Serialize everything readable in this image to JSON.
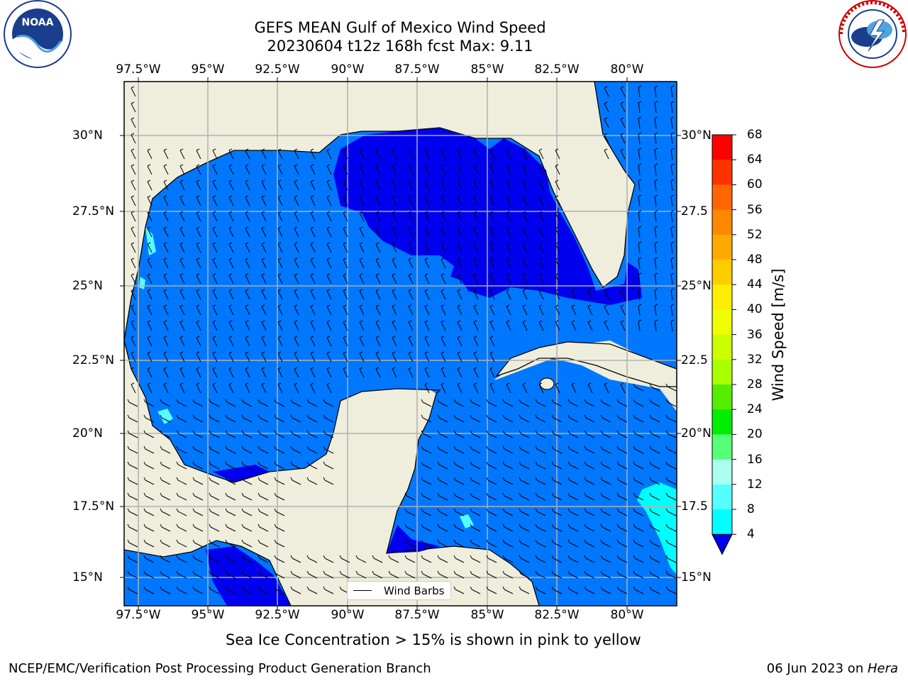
{
  "title_line1": "GEFS MEAN Gulf of Mexico Wind Speed",
  "title_line2": "20230604 t12z 168h fcst   Max: 9.11",
  "lon_ticks": [
    "97.5°W",
    "95°W",
    "92.5°W",
    "90°W",
    "87.5°W",
    "85°W",
    "82.5°W",
    "80°W"
  ],
  "lat_ticks": [
    "30°N",
    "27.5°N",
    "25°N",
    "22.5°N",
    "20°N",
    "17.5°N",
    "15°N"
  ],
  "lat_ticks_right": [
    "30°N",
    "27.5",
    "25°N",
    "22.5",
    "20°N",
    "17.5",
    "15°N"
  ],
  "colorbar": {
    "title": "Wind Speed [m/s]",
    "labels": [
      "68",
      "64",
      "60",
      "56",
      "52",
      "48",
      "44",
      "40",
      "36",
      "32",
      "28",
      "24",
      "20",
      "16",
      "12",
      "8",
      "4"
    ],
    "colors": [
      "#ff0000",
      "#ff3300",
      "#ff6600",
      "#ff8800",
      "#ffaa00",
      "#ffcc00",
      "#ffee00",
      "#eeff00",
      "#ccff00",
      "#aaff00",
      "#55ee00",
      "#00ee00",
      "#55ff77",
      "#aaffee",
      "#55ffff",
      "#00ffff",
      "#0077ff"
    ],
    "under_color": "#0000ee"
  },
  "legend_label": "Wind Barbs",
  "note": "Sea Ice Concentration > 15% is shown in pink to yellow",
  "footer_left": "NCEP/EMC/Verification Post Processing Product Generation Branch",
  "footer_right_text": "06 Jun 2023 on ",
  "footer_right_host": "Hera",
  "logos": {
    "left": "noaa-logo",
    "right": "nws-logo",
    "noaa_text": "NOAA"
  },
  "colors": {
    "land": "#efeedc",
    "ocean_main": "#0077ff",
    "ocean_low": "#0000ee",
    "ocean_high": "#00ffff"
  }
}
